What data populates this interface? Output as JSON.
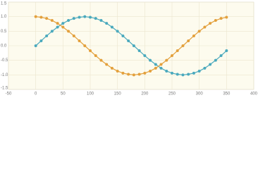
{
  "chart_data": {
    "type": "line",
    "x": [
      0,
      10,
      20,
      30,
      40,
      50,
      60,
      70,
      80,
      90,
      100,
      110,
      120,
      130,
      140,
      150,
      160,
      170,
      180,
      190,
      200,
      210,
      220,
      230,
      240,
      250,
      260,
      270,
      280,
      290,
      300,
      310,
      320,
      330,
      340,
      350
    ],
    "series": [
      {
        "color": "#4aa9bd",
        "values": [
          0,
          0.17,
          0.34,
          0.5,
          0.64,
          0.77,
          0.87,
          0.94,
          0.98,
          1,
          0.98,
          0.94,
          0.87,
          0.77,
          0.64,
          0.5,
          0.34,
          0.17,
          0,
          -0.17,
          -0.34,
          -0.5,
          -0.64,
          -0.77,
          -0.87,
          -0.94,
          -0.98,
          -1,
          -0.98,
          -0.94,
          -0.87,
          -0.77,
          -0.64,
          -0.5,
          -0.34,
          -0.17
        ]
      },
      {
        "color": "#e3a03c",
        "values": [
          1,
          0.98,
          0.94,
          0.87,
          0.77,
          0.64,
          0.5,
          0.34,
          0.17,
          0,
          -0.17,
          -0.34,
          -0.5,
          -0.64,
          -0.77,
          -0.87,
          -0.94,
          -0.98,
          -1,
          -0.98,
          -0.94,
          -0.87,
          -0.77,
          -0.64,
          -0.5,
          -0.34,
          -0.17,
          0,
          0.17,
          0.34,
          0.5,
          0.64,
          0.77,
          0.87,
          0.94,
          0.98
        ]
      }
    ],
    "xlim": [
      -50,
      400
    ],
    "xticks": [
      -50,
      0,
      50,
      100,
      150,
      200,
      250,
      300,
      350,
      400
    ],
    "ylim": [
      -1.5,
      1.5
    ],
    "yticks": [
      -1.5,
      {
        "value": -1,
        "label": "-1.0"
      },
      -0.5,
      {
        "value": 0,
        "label": "0.0"
      },
      0.5,
      {
        "value": 1,
        "label": "1.0"
      },
      1.5
    ],
    "grid": true
  }
}
